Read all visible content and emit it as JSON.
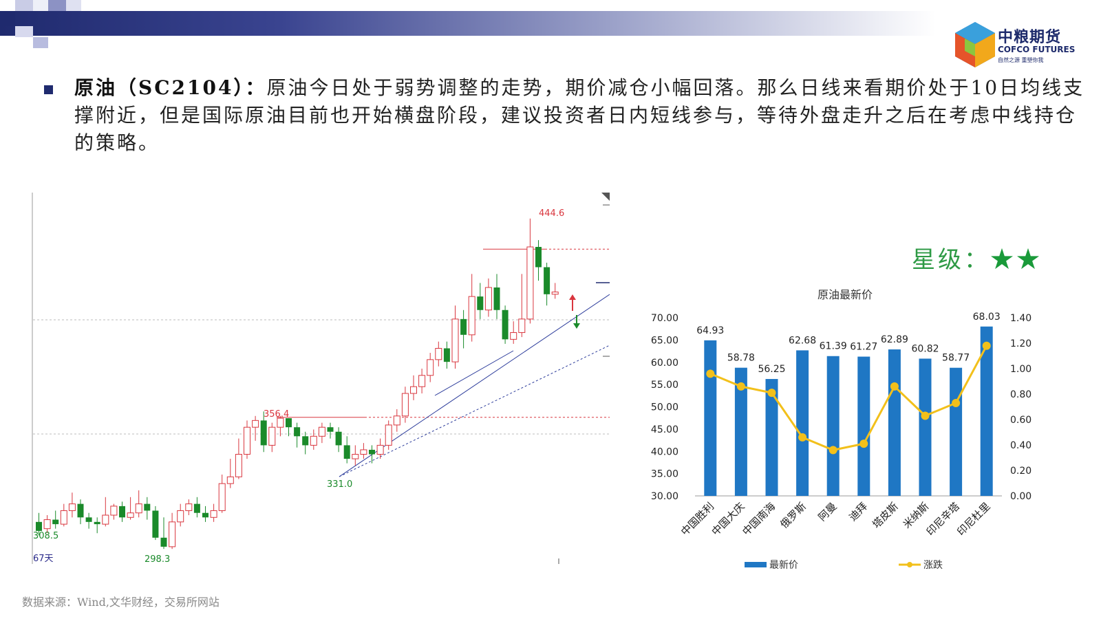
{
  "paragraph": {
    "bold_prefix": "原油（SC2104）：",
    "text": "原油今日处于弱势调整的走势，期价减仓小幅回落。那么日线来看期价处于10日均线支撑附近，但是国际原油目前也开始横盘阶段，建议投资者日内短线参与，等待外盘走升之后在考虑中线持仓的策略。"
  },
  "logo": {
    "cn": "中粮期货",
    "en": "COFCO FUTURES",
    "sub": "自然之源  重塑你我"
  },
  "rating": {
    "label": "星级：",
    "stars": "★★"
  },
  "source": "数据来源：Wind,文华财经，交易所网站",
  "colors": {
    "up": "#d9363e",
    "down": "#1a8a2a",
    "bar": "#1f77c4",
    "line": "#f2c01b",
    "header": "#1f2a6e"
  },
  "chart_data": [
    {
      "type": "candlestick",
      "annotations": {
        "high_label": "444.6",
        "mid_high_label": "356.4",
        "mid_low_label": "331.0",
        "left_low_label": "308.5",
        "low_label": "298.3",
        "period_label": "67天"
      },
      "candles": [
        [
          310,
          306,
          314,
          304
        ],
        [
          307,
          311,
          313,
          305
        ],
        [
          311,
          309,
          315,
          307
        ],
        [
          309,
          315,
          318,
          308
        ],
        [
          315,
          318,
          323,
          312
        ],
        [
          318,
          312,
          320,
          309
        ],
        [
          312,
          310,
          314,
          307
        ],
        [
          310,
          309,
          312,
          305
        ],
        [
          309,
          313,
          321,
          308
        ],
        [
          313,
          317,
          318,
          311
        ],
        [
          317,
          312,
          319,
          310
        ],
        [
          312,
          314,
          321,
          311
        ],
        [
          314,
          318,
          324,
          312
        ],
        [
          318,
          315,
          321,
          311
        ],
        [
          315,
          303,
          317,
          302
        ],
        [
          303,
          299,
          312,
          298
        ],
        [
          299,
          310,
          314,
          298
        ],
        [
          310,
          315,
          318,
          308
        ],
        [
          315,
          318,
          320,
          313
        ],
        [
          318,
          314,
          321,
          312
        ],
        [
          314,
          312,
          317,
          310
        ],
        [
          312,
          315,
          318,
          310
        ],
        [
          315,
          327,
          331,
          314
        ],
        [
          327,
          330,
          338,
          325
        ],
        [
          330,
          340,
          347,
          329
        ],
        [
          340,
          352,
          355,
          338
        ],
        [
          352,
          355,
          357,
          346
        ],
        [
          355,
          344,
          359,
          341
        ],
        [
          344,
          352,
          354,
          341
        ],
        [
          352,
          356,
          357,
          348
        ],
        [
          356,
          352,
          356,
          348
        ],
        [
          352,
          348,
          354,
          343
        ],
        [
          348,
          344,
          350,
          340
        ],
        [
          344,
          348,
          351,
          342
        ],
        [
          348,
          352,
          354,
          345
        ],
        [
          352,
          350,
          354,
          347
        ],
        [
          350,
          344,
          352,
          341
        ],
        [
          344,
          338,
          348,
          336
        ],
        [
          338,
          340,
          344,
          335
        ],
        [
          340,
          342,
          345,
          338
        ],
        [
          342,
          340,
          344,
          336
        ],
        [
          340,
          344,
          347,
          338
        ],
        [
          344,
          353,
          355,
          342
        ],
        [
          353,
          357,
          360,
          350
        ],
        [
          357,
          367,
          370,
          354
        ],
        [
          367,
          370,
          375,
          364
        ],
        [
          370,
          375,
          378,
          367
        ],
        [
          375,
          382,
          385,
          372
        ],
        [
          382,
          387,
          390,
          379
        ],
        [
          387,
          381,
          390,
          378
        ],
        [
          381,
          400,
          406,
          378
        ],
        [
          400,
          393,
          404,
          387
        ],
        [
          393,
          410,
          420,
          390
        ],
        [
          410,
          404,
          416,
          400
        ],
        [
          404,
          414,
          418,
          401
        ],
        [
          414,
          404,
          420,
          400
        ],
        [
          404,
          391,
          406,
          389
        ],
        [
          391,
          394,
          399,
          389
        ],
        [
          394,
          400,
          420,
          392
        ],
        [
          400,
          432,
          444.6,
          398
        ],
        [
          432,
          423,
          435,
          417
        ],
        [
          423,
          411,
          425,
          406
        ],
        [
          411,
          412,
          416,
          409
        ]
      ],
      "hlines": [
        356.4,
        431
      ],
      "trend_support": "331.0 → 444.6"
    },
    {
      "type": "bar+line",
      "title": "原油最新价",
      "categories": [
        "中国胜利",
        "中国大庆",
        "中国南海",
        "俄罗斯",
        "阿曼",
        "迪拜",
        "塔皮斯",
        "米纳斯",
        "印尼辛塔",
        "印尼杜里"
      ],
      "series": [
        {
          "name": "最新价",
          "type": "bar",
          "axis": "left",
          "values": [
            64.93,
            58.78,
            56.25,
            62.68,
            61.39,
            61.27,
            62.89,
            60.82,
            58.77,
            68.03
          ]
        },
        {
          "name": "涨跌",
          "type": "line",
          "axis": "right",
          "values": [
            0.96,
            0.86,
            0.81,
            0.46,
            0.36,
            0.41,
            0.86,
            0.63,
            0.73,
            1.18
          ]
        }
      ],
      "left_axis": {
        "ylim": [
          30,
          70
        ],
        "ticks": [
          "70.00",
          "65.00",
          "60.00",
          "55.00",
          "50.00",
          "45.00",
          "40.00",
          "35.00",
          "30.00"
        ]
      },
      "right_axis": {
        "ylim": [
          0,
          1.4
        ],
        "ticks": [
          "1.40",
          "1.20",
          "1.00",
          "0.80",
          "0.60",
          "0.40",
          "0.20",
          "0.00"
        ]
      },
      "legend": [
        "最新价",
        "涨跌"
      ]
    }
  ]
}
